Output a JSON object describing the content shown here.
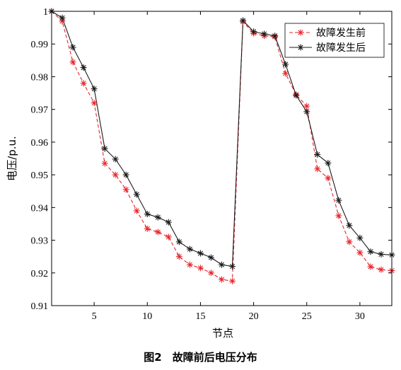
{
  "caption": "图2　故障前后电压分布",
  "chart_data": {
    "type": "line",
    "title": "",
    "xlabel": "节点",
    "ylabel": "电压/p.u.",
    "xlim": [
      1,
      33
    ],
    "ylim": [
      0.91,
      1.0
    ],
    "xticks": [
      5,
      10,
      15,
      20,
      25,
      30
    ],
    "yticks": [
      0.91,
      0.92,
      0.93,
      0.94,
      0.95,
      0.96,
      0.97,
      0.98,
      0.99,
      1
    ],
    "ytick_labels": [
      "0.91",
      "0.92",
      "0.93",
      "0.94",
      "0.95",
      "0.96",
      "0.97",
      "0.98",
      "0.99",
      "1"
    ],
    "grid": false,
    "legend_position": "top-right",
    "x": [
      1,
      2,
      3,
      4,
      5,
      6,
      7,
      8,
      9,
      10,
      11,
      12,
      13,
      14,
      15,
      16,
      17,
      18,
      19,
      20,
      21,
      22,
      23,
      24,
      25,
      26,
      27,
      28,
      29,
      30,
      31,
      32,
      33
    ],
    "series": [
      {
        "name": "故障发生前",
        "color": "#e8252b",
        "line_style": "dashed",
        "marker": "asterisk",
        "values": [
          1.0,
          0.997,
          0.9845,
          0.978,
          0.972,
          0.9535,
          0.95,
          0.9455,
          0.939,
          0.9335,
          0.9325,
          0.931,
          0.925,
          0.9225,
          0.9215,
          0.92,
          0.918,
          0.9175,
          0.9968,
          0.9933,
          0.9925,
          0.9922,
          0.981,
          0.9745,
          0.971,
          0.9518,
          0.949,
          0.9375,
          0.9295,
          0.9262,
          0.9219,
          0.921,
          0.9207
        ]
      },
      {
        "name": "故障发生后",
        "color": "#1a1a1a",
        "line_style": "solid",
        "marker": "asterisk",
        "values": [
          1.0,
          0.998,
          0.989,
          0.9828,
          0.9763,
          0.958,
          0.9548,
          0.95,
          0.944,
          0.938,
          0.937,
          0.9355,
          0.9295,
          0.9273,
          0.926,
          0.9247,
          0.9225,
          0.922,
          0.9972,
          0.9938,
          0.9931,
          0.9925,
          0.9838,
          0.9743,
          0.9693,
          0.9562,
          0.9536,
          0.9422,
          0.9345,
          0.9307,
          0.9265,
          0.9257,
          0.9255
        ]
      }
    ]
  }
}
